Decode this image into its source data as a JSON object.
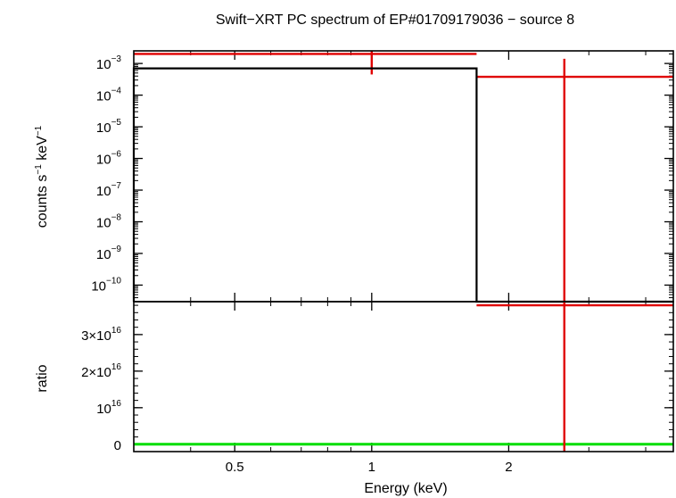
{
  "chart_data": {
    "type": "line",
    "title": "Swift−XRT PC spectrum of EP#01709179036 − source 8",
    "xlabel": "Energy (keV)",
    "xscale": "log",
    "xlim": [
      0.3,
      4.6
    ],
    "x_ticks": [
      {
        "value": 0.5,
        "label": "0.5"
      },
      {
        "value": 1,
        "label": "1"
      },
      {
        "value": 2,
        "label": "2"
      }
    ],
    "colors": {
      "data": "#e00000",
      "model": "#000000",
      "unity": "#00dd00",
      "frame": "#000000"
    },
    "panels": [
      {
        "name": "spectrum",
        "ylabel": {
          "pre": "counts s",
          "sup1": "−1",
          "mid": " keV",
          "sup2": "−1"
        },
        "yscale": "log",
        "ylim": [
          3e-11,
          0.0025
        ],
        "y_ticks": [
          {
            "value": 0.001,
            "base": "10",
            "exp": "−3"
          },
          {
            "value": 0.0001,
            "base": "10",
            "exp": "−4"
          },
          {
            "value": 1e-05,
            "base": "10",
            "exp": "−5"
          },
          {
            "value": 1e-06,
            "base": "10",
            "exp": "−6"
          },
          {
            "value": 1e-07,
            "base": "10",
            "exp": "−7"
          },
          {
            "value": 1e-08,
            "base": "10",
            "exp": "−8"
          },
          {
            "value": 1e-09,
            "base": "10",
            "exp": "−9"
          },
          {
            "value": 1e-10,
            "base": "10",
            "exp": "−10"
          }
        ],
        "series": [
          {
            "name": "data",
            "points": [
              {
                "x": 1.0,
                "xlo": 0.3,
                "xhi": 1.7,
                "y": 0.002,
                "ylo": 0.00045,
                "yhi": 0.0025
              },
              {
                "x": 2.65,
                "xlo": 1.7,
                "xhi": 4.6,
                "y": 0.00038,
                "ylo": 3e-11,
                "yhi": 0.0014
              }
            ]
          },
          {
            "name": "model",
            "steps": [
              {
                "xlo": 0.3,
                "xhi": 1.7,
                "y": 0.0007
              },
              {
                "xlo": 1.7,
                "xhi": 4.6,
                "y": 3e-11
              }
            ]
          }
        ]
      },
      {
        "name": "ratio",
        "ylabel": "ratio",
        "yscale": "linear",
        "ylim": [
          -2000000000000000.0,
          3.9e+16
        ],
        "y_ticks": [
          {
            "value": 0,
            "base": "0",
            "exp": ""
          },
          {
            "value": 1e+16,
            "base": "10",
            "exp": "16"
          },
          {
            "value": 2e+16,
            "base": "2×10",
            "exp": "16"
          },
          {
            "value": 3e+16,
            "base": "3×10",
            "exp": "16"
          }
        ],
        "series": [
          {
            "name": "data",
            "points": [
              {
                "x": 2.65,
                "xlo": 1.7,
                "xhi": 4.6,
                "y": 3.8e+16,
                "ylo": -2000000000000000.0,
                "yhi": 3.9e+16
              }
            ]
          }
        ],
        "unity_line": 0
      }
    ]
  }
}
